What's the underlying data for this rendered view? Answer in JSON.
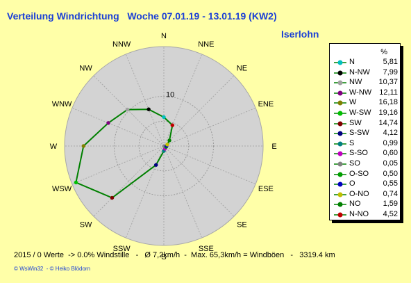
{
  "title": "Verteilung Windrichtung   Woche 07.01.19 - 13.01.19 (KW2)",
  "location": "Iserlohn",
  "footer": "2015 / 0 Werte  -> 0.0% Windstille   -   Ø 7,2km/h  -  Max. 65,3km/h = Windböen   -   3319.4 km",
  "credits": "© WsWin32  - © Heiko Blödorn",
  "legend": {
    "unit_header": "%"
  },
  "colors": {
    "background": "#ffffa8",
    "title": "#1a3fd6",
    "rose_fill": "#d3d3d3",
    "series_line": "#008000"
  },
  "chart_data": {
    "type": "radar",
    "directions": [
      "N",
      "NNE",
      "NE",
      "ENE",
      "E",
      "ESE",
      "SE",
      "SSE",
      "S",
      "SSW",
      "SW",
      "WSW",
      "W",
      "WNW",
      "NW",
      "NNW"
    ],
    "ring_label": "10",
    "rmax": 20,
    "values": [
      {
        "label": "N",
        "value": 5.81,
        "color": "#00c0c0"
      },
      {
        "label": "N-NW",
        "value": 7.99,
        "color": "#000000"
      },
      {
        "label": "NW",
        "value": 10.37,
        "color": "#a0a0a0"
      },
      {
        "label": "W-NW",
        "value": 12.11,
        "color": "#800080"
      },
      {
        "label": "W",
        "value": 16.18,
        "color": "#808000"
      },
      {
        "label": "W-SW",
        "value": 19.16,
        "color": "#00c000"
      },
      {
        "label": "SW",
        "value": 14.74,
        "color": "#800000"
      },
      {
        "label": "S-SW",
        "value": 4.12,
        "color": "#000080"
      },
      {
        "label": "S",
        "value": 0.99,
        "color": "#008080"
      },
      {
        "label": "S-SO",
        "value": 0.6,
        "color": "#c000c0"
      },
      {
        "label": "SO",
        "value": 0.05,
        "color": "#808080"
      },
      {
        "label": "O-SO",
        "value": 0.5,
        "color": "#00a000"
      },
      {
        "label": "O",
        "value": 0.55,
        "color": "#0000c0"
      },
      {
        "label": "O-NO",
        "value": 0.74,
        "color": "#c0c000"
      },
      {
        "label": "NO",
        "value": 1.59,
        "color": "#008000"
      },
      {
        "label": "N-NO",
        "value": 4.52,
        "color": "#c00000"
      }
    ],
    "display_values": [
      "5,81",
      "7,99",
      "10,37",
      "12,11",
      "16,18",
      "19,16",
      "14,74",
      "4,12",
      "0,99",
      "0,60",
      "0,05",
      "0,50",
      "0,55",
      "0,74",
      "1,59",
      "4,52"
    ]
  }
}
